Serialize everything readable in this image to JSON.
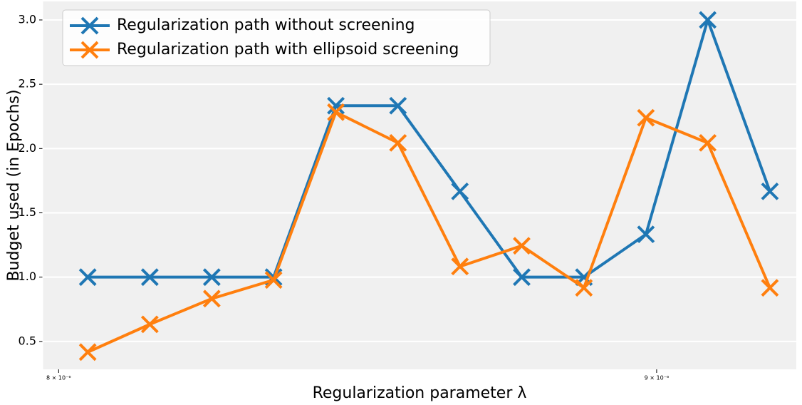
{
  "chart_data": {
    "type": "line",
    "xlabel": "Regularization parameter λ",
    "ylabel": "Budget used (in Epochs)",
    "x": [
      8.046e-06,
      8.145e-06,
      8.245e-06,
      8.346e-06,
      8.449e-06,
      8.553e-06,
      8.658e-06,
      8.764e-06,
      8.872e-06,
      8.981e-06,
      9.091e-06,
      9.203e-06
    ],
    "series": [
      {
        "name": "Regularization path without screening",
        "color": "#1f77b4",
        "values": [
          1.0,
          1.0,
          1.0,
          1.0,
          2.333,
          2.333,
          1.667,
          1.0,
          1.0,
          1.333,
          3.0,
          1.667
        ]
      },
      {
        "name": "Regularization path with ellipsoid screening",
        "color": "#ff7f0e",
        "values": [
          0.417,
          0.633,
          0.833,
          0.978,
          2.283,
          2.044,
          1.083,
          1.244,
          0.917,
          2.239,
          2.044,
          0.917
        ]
      }
    ],
    "xscale": "log",
    "xlim": [
      7.975e-06,
      9.251e-06
    ],
    "xticks": [
      {
        "value": 8e-06,
        "label": "8 × 10⁻⁶"
      },
      {
        "value": 9e-06,
        "label": "9 × 10⁻⁶"
      }
    ],
    "ylim": [
      0.283,
      3.144
    ],
    "yticks": [
      0.5,
      {
        "value": 1.0,
        "label": "1.0"
      },
      1.5,
      {
        "value": 2.0,
        "label": "2.0"
      },
      2.5,
      {
        "value": 3.0,
        "label": "3.0"
      }
    ],
    "grid": true,
    "legend": "upper left"
  }
}
